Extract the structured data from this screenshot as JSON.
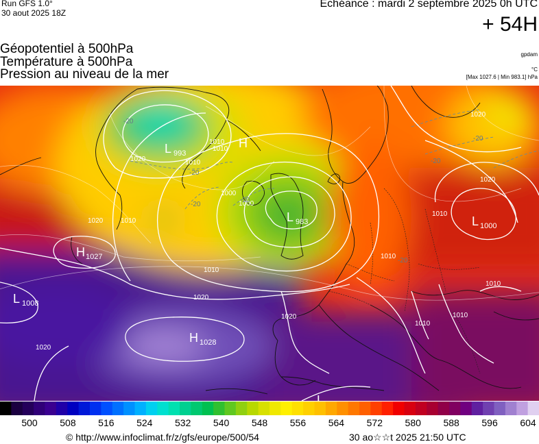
{
  "header": {
    "run_line1": "Run GFS 1.0°",
    "run_line2": "30 aout 2025 18Z",
    "echeance": "Echéance : mardi 2 septembre 2025 0h UTC",
    "horizon": "+ 54H"
  },
  "titles": {
    "line1": "Géopotentiel à 500hPa",
    "line2": "Température à 500hPa",
    "line3": "Pression au niveau de la mer"
  },
  "units": {
    "geo": "gpdam",
    "temp": "°C",
    "pressure_range": "[Max 1027.6 | Min 983.1] hPa"
  },
  "map": {
    "isobar_labels": [
      "1010",
      "1010",
      "1000",
      "1020",
      "1010",
      "1020",
      "1020",
      "1010",
      "1010",
      "1020",
      "1010",
      "1010",
      "1010",
      "1020",
      "1010",
      "1000",
      "1020",
      "1020",
      "1010"
    ],
    "temp_labels": [
      "-20",
      "-20",
      "-20",
      "-20",
      "-20",
      "-20",
      "-20"
    ],
    "pressure_centers": [
      {
        "type": "L",
        "value": "993"
      },
      {
        "type": "H",
        "value": ""
      },
      {
        "type": "L",
        "value": "983"
      },
      {
        "type": "H",
        "value": "1027"
      },
      {
        "type": "L",
        "value": "1008"
      },
      {
        "type": "H",
        "value": "1028"
      },
      {
        "type": "L",
        "value": "1000"
      },
      {
        "type": "L",
        "value": ""
      }
    ]
  },
  "colorbar": {
    "colors": [
      "#000000",
      "#1a0040",
      "#24005a",
      "#300078",
      "#3a0090",
      "#2000a8",
      "#0000c0",
      "#0018d8",
      "#0030f0",
      "#0050ff",
      "#0070ff",
      "#0090ff",
      "#00b0ff",
      "#00d0f0",
      "#00e0d0",
      "#00e0b0",
      "#00d090",
      "#00c870",
      "#00c050",
      "#30c030",
      "#60c820",
      "#90d010",
      "#b8d800",
      "#d8e000",
      "#f0e800",
      "#fff000",
      "#ffe000",
      "#ffd000",
      "#ffc000",
      "#ffa800",
      "#ff9000",
      "#ff7800",
      "#ff6000",
      "#ff4000",
      "#ff2000",
      "#f00000",
      "#d80010",
      "#c00020",
      "#a80030",
      "#900048",
      "#800060",
      "#700080",
      "#6020a0",
      "#7040b0",
      "#8060c0",
      "#a080d0",
      "#c0a0e0",
      "#e0d0f0"
    ],
    "ticks": [
      "500",
      "508",
      "516",
      "524",
      "532",
      "540",
      "548",
      "556",
      "564",
      "572",
      "580",
      "588",
      "596",
      "604"
    ]
  },
  "footer": {
    "source": "© http://www.infoclimat.fr/z/gfs/europe/500/54",
    "timestamp": "30 ao☆☆t 2025 21:50 UTC"
  }
}
